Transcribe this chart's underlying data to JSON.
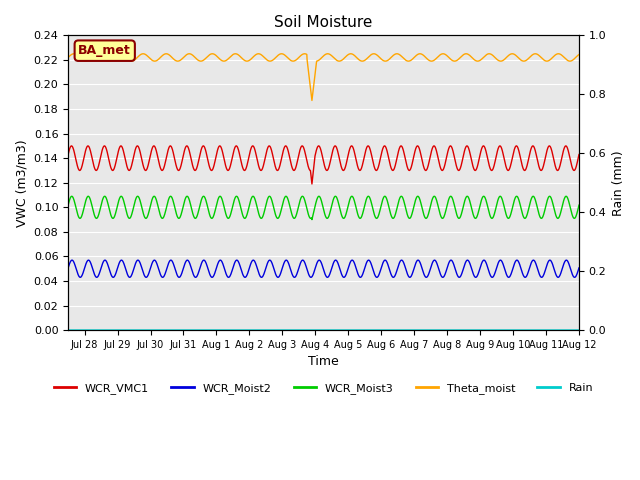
{
  "title": "Soil Moisture",
  "xlabel": "Time",
  "ylabel_left": "VWC (m3/m3)",
  "ylabel_right": "Rain (mm)",
  "ylim_left": [
    0.0,
    0.24
  ],
  "ylim_right": [
    0.0,
    1.0
  ],
  "yticks_left": [
    0.0,
    0.02,
    0.04,
    0.06,
    0.08,
    0.1,
    0.12,
    0.14,
    0.16,
    0.18,
    0.2,
    0.22,
    0.24
  ],
  "yticks_right": [
    0.0,
    0.2,
    0.4,
    0.6,
    0.8,
    1.0
  ],
  "facecolor": "#e8e8e8",
  "gridcolor": "white",
  "annotation_text": "BA_met",
  "annotation_color": "#8b0000",
  "annotation_bg": "#ffff99",
  "colors": {
    "WCR_VMC1": "#dd0000",
    "WCR_Moist2": "#0000dd",
    "WCR_Moist3": "#00cc00",
    "Theta_moist": "#ffa500",
    "Rain": "#00cccc"
  },
  "num_points": 2000,
  "total_days": 15.5,
  "spike_day": 7.4,
  "wcr_vmc1": {
    "base": 0.14,
    "amp": 0.01,
    "period": 0.5,
    "phase": 0.3
  },
  "wcr_moist2": {
    "base": 0.05,
    "amp": 0.007,
    "period": 0.5,
    "phase": 0.1
  },
  "wcr_moist3": {
    "base": 0.1,
    "amp": 0.009,
    "period": 0.5,
    "phase": 0.2
  },
  "theta_moist": {
    "base": 0.222,
    "amp": 0.003,
    "period": 0.7,
    "phase": 0.0
  },
  "spike_red_min": 0.119,
  "spike_green_min": 0.09,
  "spike_orange_min": 0.187,
  "xtick_labels": [
    "Jul 28",
    "Jul 29",
    "Jul 30",
    "Jul 31",
    "Aug 1",
    "Aug 2",
    "Aug 3",
    "Aug 4",
    "Aug 5",
    "Aug 6",
    "Aug 7",
    "Aug 8",
    "Aug 9",
    "Aug 10",
    "Aug 11",
    "Aug 12"
  ],
  "xtick_positions": [
    0.5,
    1.5,
    2.5,
    3.5,
    4.5,
    5.5,
    6.5,
    7.5,
    8.5,
    9.5,
    10.5,
    11.5,
    12.5,
    13.5,
    14.5,
    15.5
  ]
}
